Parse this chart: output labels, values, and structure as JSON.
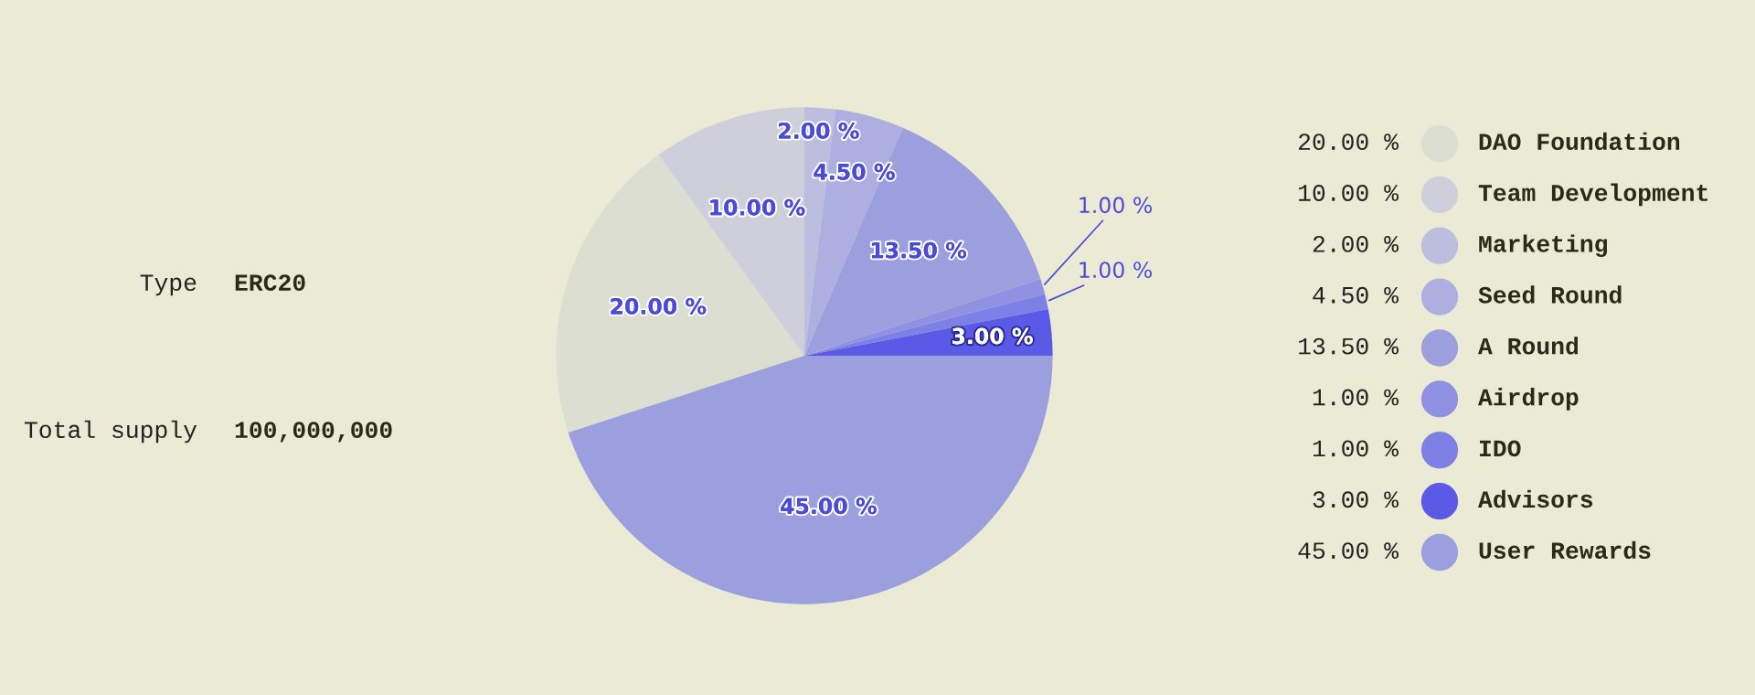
{
  "chart_data": [
    {
      "type": "other",
      "annotations": [
        "Type",
        "ERC20",
        "Total supply",
        "100,000,000"
      ]
    },
    {
      "type": "pie",
      "categories": [
        "DAO Foundation",
        "Team Development",
        "Marketing",
        "Seed Round",
        "A Round",
        "Airdrop",
        "IDO",
        "Advisors",
        "User Rewards"
      ],
      "values": [
        20,
        10,
        2,
        4.5,
        13.5,
        1,
        1,
        3,
        45
      ],
      "value_labels": [
        "20.00 %",
        "10.00 %",
        "2.00 %",
        "4.50 %",
        "13.50 %",
        "1.00 %",
        "1.00 %",
        "3.00 %",
        "45.00 %"
      ],
      "colors": [
        "#dcded2",
        "#cfcfdc",
        "#bdbde0",
        "#adafe0",
        "#9c9fde",
        "#8f91e3",
        "#7f80e6",
        "#5a5ae6",
        "#9c9fde"
      ],
      "legend": "right"
    }
  ]
}
